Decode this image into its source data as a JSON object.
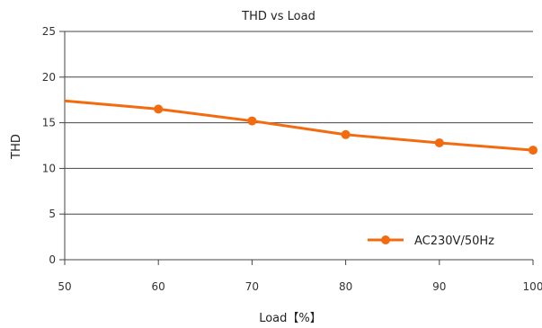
{
  "chart_data": {
    "type": "line",
    "title": "THD vs Load",
    "xlabel": "Load【%】",
    "ylabel": "THD",
    "xlim": [
      50,
      100
    ],
    "ylim": [
      0,
      25
    ],
    "x_ticks": [
      "50",
      "60",
      "70",
      "80",
      "90",
      "100"
    ],
    "y_ticks": [
      "0",
      "5",
      "10",
      "15",
      "20",
      "25"
    ],
    "grid": "horizontal",
    "legend_position": "bottom-right",
    "series": [
      {
        "name": "AC230V/50Hz",
        "color": "#f26b0f",
        "x": [
          50,
          60,
          70,
          80,
          90,
          100
        ],
        "y": [
          17.4,
          16.5,
          15.2,
          13.7,
          12.8,
          12.0
        ],
        "markers": [
          60,
          70,
          80,
          90,
          100
        ]
      }
    ]
  }
}
